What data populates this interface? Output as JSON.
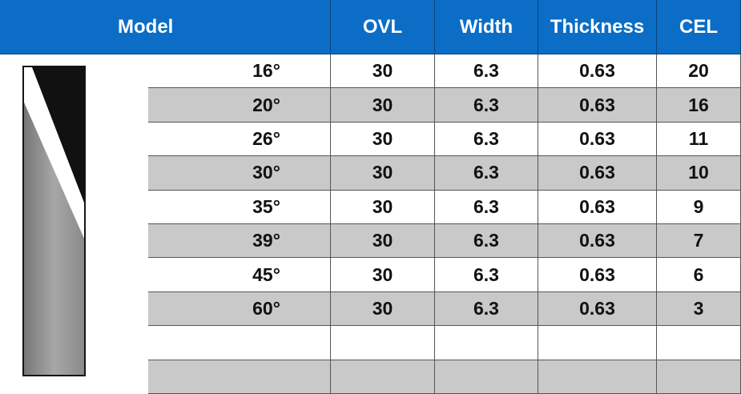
{
  "table": {
    "header": [
      "Model",
      "OVL",
      "Width",
      "Thickness",
      "CEL"
    ],
    "rows": [
      [
        "16°",
        "30",
        "6.3",
        "0.63",
        "20"
      ],
      [
        "20°",
        "30",
        "6.3",
        "0.63",
        "16"
      ],
      [
        "26°",
        "30",
        "6.3",
        "0.63",
        "11"
      ],
      [
        "30°",
        "30",
        "6.3",
        "0.63",
        "10"
      ],
      [
        "35°",
        "30",
        "6.3",
        "0.63",
        "9"
      ],
      [
        "39°",
        "30",
        "6.3",
        "0.63",
        "7"
      ],
      [
        "45°",
        "30",
        "6.3",
        "0.63",
        "6"
      ],
      [
        "60°",
        "30",
        "6.3",
        "0.63",
        "3"
      ]
    ]
  }
}
